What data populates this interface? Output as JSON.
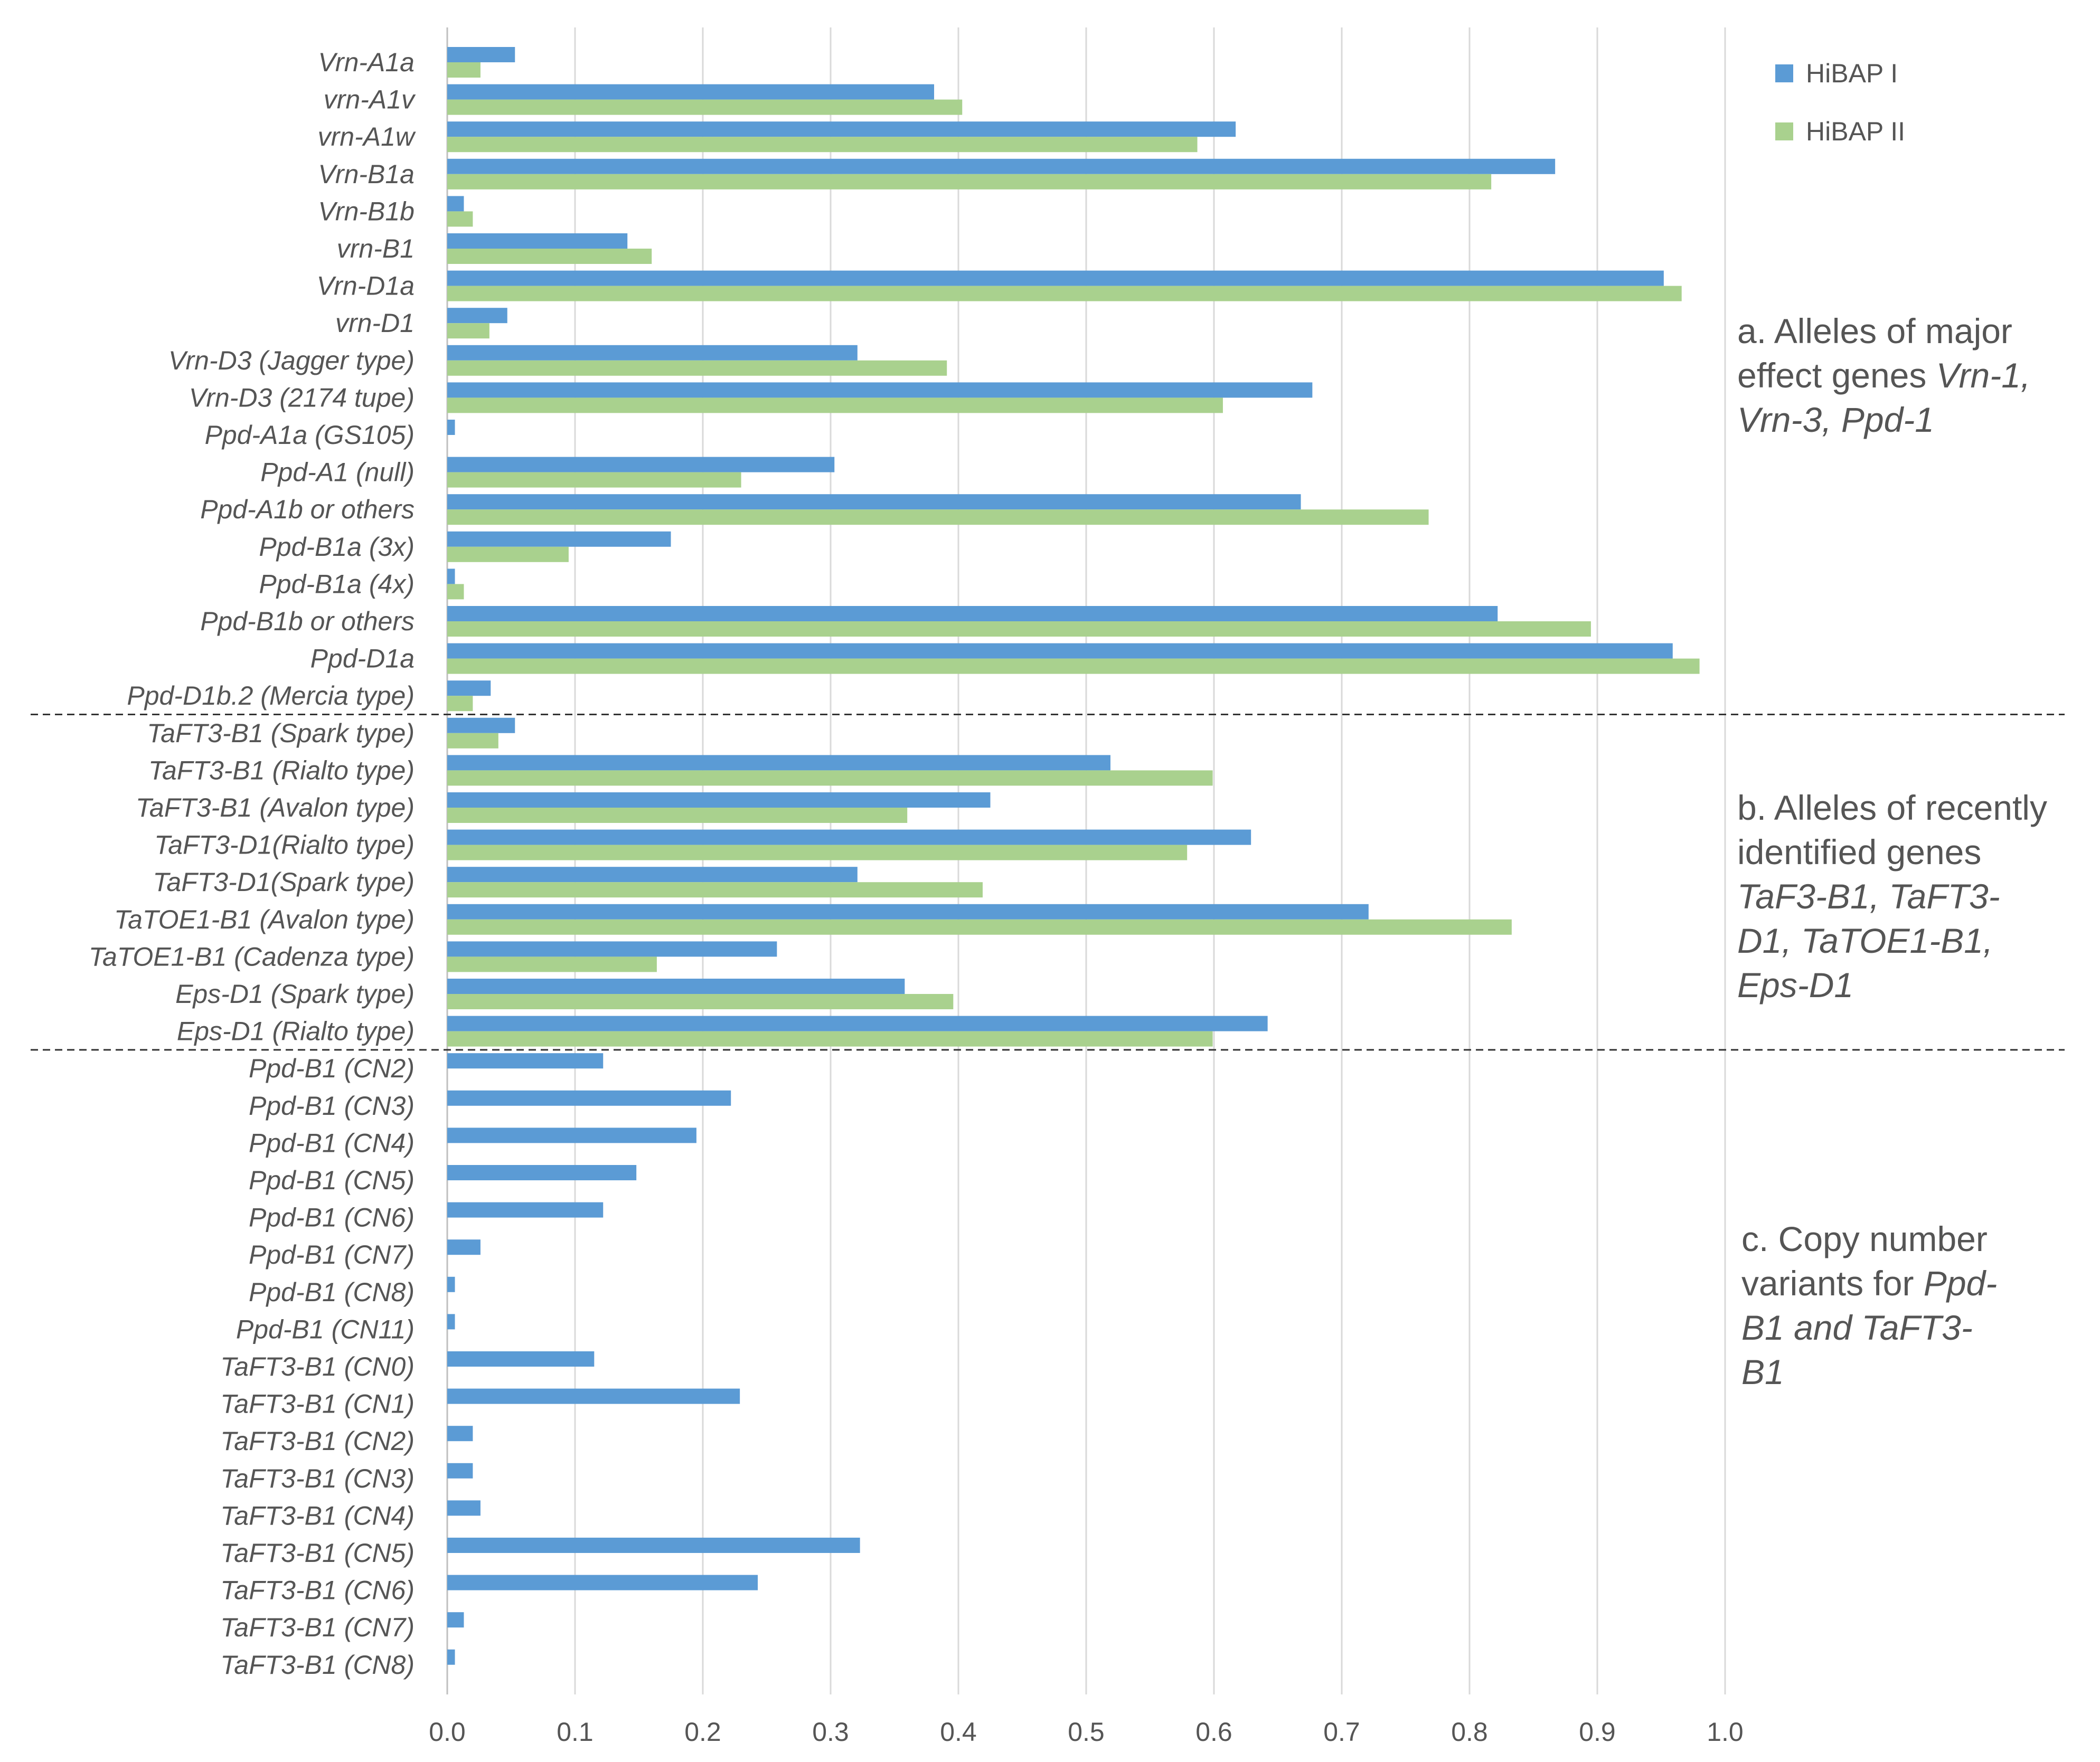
{
  "chart_data": {
    "type": "bar",
    "orientation": "horizontal",
    "xlim": [
      0,
      1.0
    ],
    "x_ticks": [
      "0.0",
      "0.1",
      "0.2",
      "0.3",
      "0.4",
      "0.5",
      "0.6",
      "0.7",
      "0.8",
      "0.9",
      "1.0"
    ],
    "grid": "vertical",
    "legend_position": "top-right",
    "categories": [
      "Vrn-A1a",
      "vrn-A1v",
      "vrn-A1w",
      "Vrn-B1a",
      "Vrn-B1b",
      "vrn-B1",
      "Vrn-D1a",
      "vrn-D1",
      "Vrn-D3 (Jagger type)",
      "Vrn-D3 (2174 tupe)",
      "Ppd-A1a (GS105)",
      "Ppd-A1 (null)",
      "Ppd-A1b or others",
      "Ppd-B1a (3x)",
      "Ppd-B1a (4x)",
      "Ppd-B1b or others",
      "Ppd-D1a",
      "Ppd-D1b.2 (Mercia type)",
      "TaFT3-B1 (Spark type)",
      "TaFT3-B1 (Rialto type)",
      "TaFT3-B1 (Avalon type)",
      "TaFT3-D1(Rialto type)",
      "TaFT3-D1(Spark type)",
      "TaTOE1-B1 (Avalon type)",
      "TaTOE1-B1 (Cadenza type)",
      "Eps-D1 (Spark type)",
      "Eps-D1 (Rialto type)",
      "Ppd-B1 (CN2)",
      "Ppd-B1 (CN3)",
      "Ppd-B1 (CN4)",
      "Ppd-B1 (CN5)",
      "Ppd-B1 (CN6)",
      "Ppd-B1 (CN7)",
      "Ppd-B1 (CN8)",
      "Ppd-B1 (CN11)",
      "TaFT3-B1 (CN0)",
      "TaFT3-B1 (CN1)",
      "TaFT3-B1 (CN2)",
      "TaFT3-B1 (CN3)",
      "TaFT3-B1 (CN4)",
      "TaFT3-B1 (CN5)",
      "TaFT3-B1 (CN6)",
      "TaFT3-B1 (CN7)",
      "TaFT3-B1 (CN8)"
    ],
    "series": [
      {
        "name": "HiBAP I",
        "color": "#5b9bd5",
        "values": [
          0.053,
          0.381,
          0.617,
          0.867,
          0.013,
          0.141,
          0.952,
          0.047,
          0.321,
          0.677,
          0.006,
          0.303,
          0.668,
          0.175,
          0.006,
          0.822,
          0.959,
          0.034,
          0.053,
          0.519,
          0.425,
          0.629,
          0.321,
          0.721,
          0.258,
          0.358,
          0.642,
          0.122,
          0.222,
          0.195,
          0.148,
          0.122,
          0.026,
          0.006,
          0.006,
          0.115,
          0.229,
          0.02,
          0.02,
          0.026,
          0.323,
          0.243,
          0.013,
          0.006
        ]
      },
      {
        "name": "HiBAP II",
        "color": "#a9d18e",
        "values": [
          0.026,
          0.403,
          0.587,
          0.817,
          0.02,
          0.16,
          0.966,
          0.033,
          0.391,
          0.607,
          0,
          0.23,
          0.768,
          0.095,
          0.013,
          0.895,
          0.98,
          0.02,
          0.04,
          0.599,
          0.36,
          0.579,
          0.419,
          0.833,
          0.164,
          0.396,
          0.599,
          0,
          0,
          0,
          0,
          0,
          0,
          0,
          0,
          0,
          0,
          0,
          0,
          0,
          0,
          0,
          0,
          0
        ]
      }
    ],
    "group_separators_after": [
      17,
      26
    ],
    "annotations": [
      {
        "id": "a",
        "lines": [
          [
            {
              "t": "a. Alleles of major",
              "i": false
            }
          ],
          [
            {
              "t": "effect genes ",
              "i": false
            },
            {
              "t": "Vrn-1,",
              "i": true
            }
          ],
          [
            {
              "t": "Vrn-3, Ppd-1",
              "i": true
            }
          ]
        ]
      },
      {
        "id": "b",
        "lines": [
          [
            {
              "t": "b. Alleles of recently",
              "i": false
            }
          ],
          [
            {
              "t": "identified genes",
              "i": false
            }
          ],
          [
            {
              "t": "TaF3-B1, TaFT3-",
              "i": true
            }
          ],
          [
            {
              "t": "D1, TaTOE1-B1,",
              "i": true
            }
          ],
          [
            {
              "t": "Eps-D1",
              "i": true
            }
          ]
        ]
      },
      {
        "id": "c",
        "lines": [
          [
            {
              "t": "c. Copy number",
              "i": false
            }
          ],
          [
            {
              "t": "variants for ",
              "i": false
            },
            {
              "t": "Ppd-",
              "i": true
            }
          ],
          [
            {
              "t": "B1 and TaFT3-",
              "i": true
            }
          ],
          [
            {
              "t": "B1",
              "i": true
            }
          ]
        ]
      }
    ]
  }
}
